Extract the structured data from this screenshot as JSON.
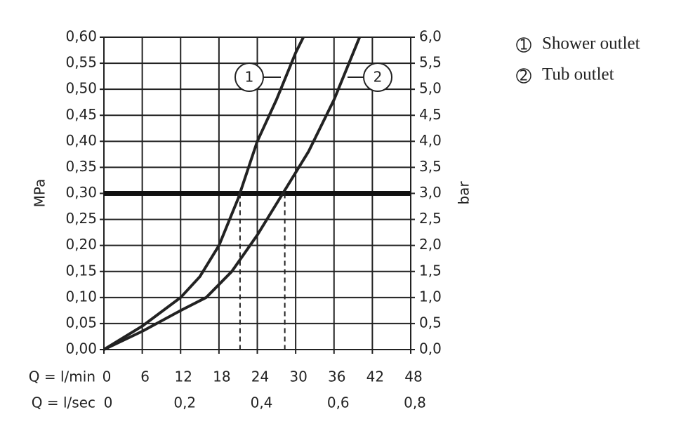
{
  "chart_data": {
    "type": "line",
    "x_label": "Q = l/min",
    "x2_label": "Q = l/sec",
    "y_label": "MPa",
    "y2_label": "bar",
    "xlim": [
      0,
      48
    ],
    "xticks": [
      0,
      6,
      12,
      18,
      24,
      30,
      36,
      42,
      48
    ],
    "x2lim": [
      0,
      0.8
    ],
    "x2ticks": [
      0,
      {
        "value": 0.2,
        "label": "0,2"
      },
      {
        "value": 0.4,
        "label": "0,4"
      },
      {
        "value": 0.6,
        "label": "0,6"
      },
      {
        "value": 0.8,
        "label": "0,8"
      }
    ],
    "ylim": [
      0,
      0.6
    ],
    "yticks": [
      {
        "value": 0,
        "label": "0,00"
      },
      {
        "value": 0.05,
        "label": "0,05"
      },
      {
        "value": 0.1,
        "label": "0,10"
      },
      {
        "value": 0.15,
        "label": "0,15"
      },
      {
        "value": 0.2,
        "label": "0,20"
      },
      {
        "value": 0.25,
        "label": "0,25"
      },
      {
        "value": 0.3,
        "label": "0,30"
      },
      {
        "value": 0.35,
        "label": "0,35"
      },
      {
        "value": 0.4,
        "label": "0,40"
      },
      {
        "value": 0.45,
        "label": "0,45"
      },
      {
        "value": 0.5,
        "label": "0,50"
      },
      {
        "value": 0.55,
        "label": "0,55"
      },
      {
        "value": 0.6,
        "label": "0,60"
      }
    ],
    "y2lim": [
      0,
      6
    ],
    "y2ticks": [
      {
        "value": 0,
        "label": "0,0"
      },
      {
        "value": 0.5,
        "label": "0,5"
      },
      {
        "value": 1,
        "label": "1,0"
      },
      {
        "value": 1.5,
        "label": "1,5"
      },
      {
        "value": 2,
        "label": "2,0"
      },
      {
        "value": 2.5,
        "label": "2,5"
      },
      {
        "value": 3,
        "label": "3,0"
      },
      {
        "value": 3.5,
        "label": "3,5"
      },
      {
        "value": 4,
        "label": "4,0"
      },
      {
        "value": 4.5,
        "label": "4,5"
      },
      {
        "value": 5,
        "label": "5,0"
      },
      {
        "value": 5.5,
        "label": "5,5"
      },
      {
        "value": 6,
        "label": "6,0"
      }
    ],
    "grid": true,
    "reference_y": 0.3,
    "reference_x": [
      21.3,
      28.3
    ],
    "curve_labels": [
      "1",
      "2"
    ],
    "series": [
      {
        "name": "Shower outlet",
        "color": "#222222",
        "x": [
          0,
          6,
          12,
          15,
          18,
          21,
          24,
          27,
          30,
          31.2
        ],
        "values": [
          0,
          0.045,
          0.1,
          0.14,
          0.2,
          0.29,
          0.4,
          0.48,
          0.57,
          0.6
        ]
      },
      {
        "name": "Tub outlet",
        "color": "#222222",
        "x": [
          0,
          6,
          12,
          16,
          20,
          24,
          28,
          32,
          36,
          40
        ],
        "values": [
          0,
          0.035,
          0.075,
          0.1,
          0.15,
          0.22,
          0.3,
          0.38,
          0.48,
          0.6
        ]
      }
    ]
  }
}
